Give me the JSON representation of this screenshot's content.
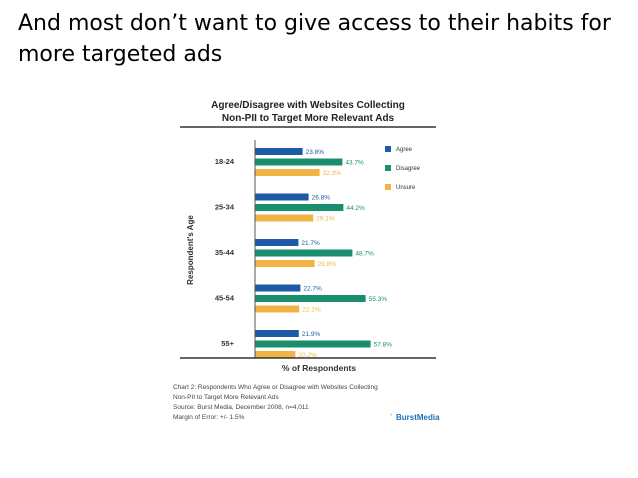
{
  "slide": {
    "title": "And most don’t want to give access to their habits for more targeted ads"
  },
  "chart_data": {
    "type": "bar",
    "orientation": "horizontal",
    "title": "Agree/Disagree with Websites Collecting Non-PII to Target More Relevant Ads",
    "title_lines": [
      "Agree/Disagree with Websites Collecting",
      "Non-PII to Target More Relevant Ads"
    ],
    "xlabel": "% of Respondents",
    "ylabel": "Respondent's Age",
    "categories": [
      "18-24",
      "25-34",
      "35-44",
      "45-54",
      "55+"
    ],
    "series": [
      {
        "name": "Agree",
        "color": "#1f5aa6",
        "values": [
          23.8,
          26.8,
          21.7,
          22.7,
          21.9
        ],
        "labels": [
          "23.8%",
          "26.8%",
          "21.7%",
          "22.7%",
          "21.9%"
        ]
      },
      {
        "name": "Disagree",
        "color": "#1a8f6e",
        "values": [
          43.7,
          44.2,
          48.7,
          55.3,
          57.8
        ],
        "labels": [
          "43.7%",
          "44.2%",
          "48.7%",
          "55.3%",
          "57.8%"
        ]
      },
      {
        "name": "Unsure",
        "color": "#f0b446",
        "values": [
          32.3,
          29.1,
          29.8,
          22.1,
          20.2
        ],
        "labels": [
          "32.3%",
          "29.1%",
          "29.8%",
          "22.1%",
          "20.2%"
        ]
      }
    ],
    "legend_position": "top-right",
    "xlim": [
      0,
      70
    ]
  },
  "notes": {
    "lines": [
      "Chart 2: Respondents Who Agree or Disagree with Websites Collecting",
      "Non-PII to Target More Relevant Ads",
      "Source: Burst Media, December 2008, n=4,011",
      "Margin of Error: +/- 1.5%"
    ]
  },
  "brand": {
    "logo_text": "BurstMedia",
    "color": "#1f6fb4"
  }
}
